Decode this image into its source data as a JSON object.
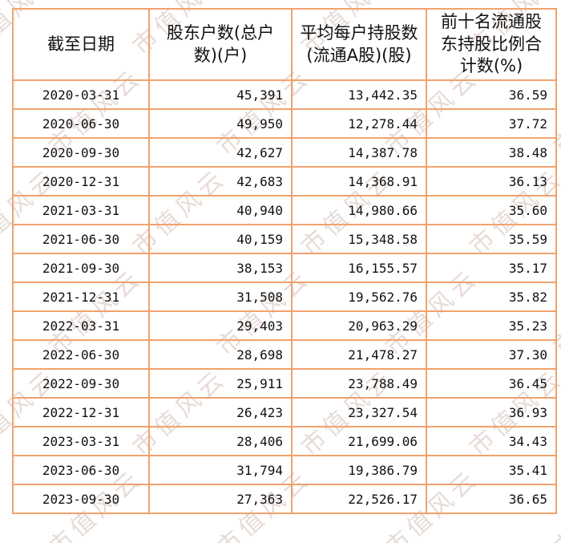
{
  "watermark": {
    "text": "市值风云",
    "color": "#d4bfb6"
  },
  "colors": {
    "table_border": "#f1a26d",
    "text": "#111111",
    "background": "#ffffff"
  },
  "chart_data": {
    "type": "table",
    "title": "",
    "columns": [
      "截至日期",
      "股东户数(总户数)(户)",
      "平均每户持股数(流通A股)(股)",
      "前十名流通股东持股比例合计数(%)"
    ],
    "header_display": [
      "截至日期",
      "股东户数(总户\n数)(户)",
      "平均每户持股数\n(流通A股)(股)",
      "前十名流通股\n东持股比例合\n计数(%)"
    ],
    "rows": [
      [
        "2020-03-31",
        "45,391",
        "13,442.35",
        "36.59"
      ],
      [
        "2020-06-30",
        "49,950",
        "12,278.44",
        "37.72"
      ],
      [
        "2020-09-30",
        "42,627",
        "14,387.78",
        "38.48"
      ],
      [
        "2020-12-31",
        "42,683",
        "14,368.91",
        "36.13"
      ],
      [
        "2021-03-31",
        "40,940",
        "14,980.66",
        "35.60"
      ],
      [
        "2021-06-30",
        "40,159",
        "15,348.58",
        "35.59"
      ],
      [
        "2021-09-30",
        "38,153",
        "16,155.57",
        "35.17"
      ],
      [
        "2021-12-31",
        "31,508",
        "19,562.76",
        "35.82"
      ],
      [
        "2022-03-31",
        "29,403",
        "20,963.29",
        "35.23"
      ],
      [
        "2022-06-30",
        "28,698",
        "21,478.27",
        "37.30"
      ],
      [
        "2022-09-30",
        "25,911",
        "23,788.49",
        "36.45"
      ],
      [
        "2022-12-31",
        "26,423",
        "23,327.54",
        "36.93"
      ],
      [
        "2023-03-31",
        "28,406",
        "21,699.06",
        "34.43"
      ],
      [
        "2023-06-30",
        "31,794",
        "19,386.79",
        "35.41"
      ],
      [
        "2023-09-30",
        "27,363",
        "22,526.17",
        "36.65"
      ]
    ]
  }
}
